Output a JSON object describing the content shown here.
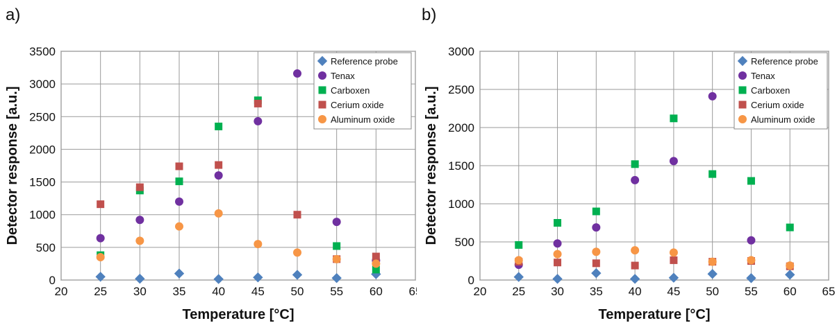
{
  "chart_data": [
    {
      "panel_label": "a)",
      "type": "scatter",
      "xlabel": "Temperature [°C]",
      "ylabel": "Detector response [a.u.]",
      "xlim": [
        20,
        65
      ],
      "ylim": [
        0,
        3500
      ],
      "xticks": [
        20,
        25,
        30,
        35,
        40,
        45,
        50,
        55,
        60,
        65
      ],
      "yticks": [
        0,
        500,
        1000,
        1500,
        2000,
        2500,
        3000,
        3500
      ],
      "grid": true,
      "legend": "top-right",
      "x": [
        25,
        30,
        35,
        40,
        45,
        50,
        55,
        60
      ],
      "series": [
        {
          "name": "Reference probe",
          "marker": "diamond",
          "color": "#4F81BD",
          "values": [
            50,
            20,
            100,
            15,
            40,
            80,
            30,
            90
          ]
        },
        {
          "name": "Tenax",
          "marker": "circle",
          "color": "#7030A0",
          "values": [
            640,
            920,
            1200,
            1600,
            2430,
            3160,
            890,
            300
          ]
        },
        {
          "name": "Carboxen",
          "marker": "square",
          "color": "#00B050",
          "values": [
            380,
            1370,
            1510,
            2350,
            2750,
            null,
            520,
            160
          ]
        },
        {
          "name": "Cerium oxide",
          "marker": "square",
          "color": "#C0504D",
          "values": [
            1160,
            1420,
            1740,
            1760,
            2700,
            1000,
            320,
            360
          ]
        },
        {
          "name": "Aluminum oxide",
          "marker": "circle",
          "color": "#F79646",
          "values": [
            350,
            600,
            820,
            1020,
            550,
            420,
            320,
            250
          ]
        }
      ]
    },
    {
      "panel_label": "b)",
      "type": "scatter",
      "xlabel": "Temperature [°C]",
      "ylabel": "Detector response [a.u.]",
      "xlim": [
        20,
        65
      ],
      "ylim": [
        0,
        3000
      ],
      "xticks": [
        20,
        25,
        30,
        35,
        40,
        45,
        50,
        55,
        60,
        65
      ],
      "yticks": [
        0,
        500,
        1000,
        1500,
        2000,
        2500,
        3000
      ],
      "grid": true,
      "legend": "top-right",
      "x": [
        25,
        30,
        35,
        40,
        45,
        50,
        55,
        60
      ],
      "series": [
        {
          "name": "Reference probe",
          "marker": "diamond",
          "color": "#4F81BD",
          "values": [
            40,
            15,
            90,
            15,
            30,
            80,
            25,
            70
          ]
        },
        {
          "name": "Tenax",
          "marker": "circle",
          "color": "#7030A0",
          "values": [
            200,
            480,
            690,
            1310,
            1560,
            2410,
            520,
            null
          ]
        },
        {
          "name": "Carboxen",
          "marker": "square",
          "color": "#00B050",
          "values": [
            460,
            750,
            900,
            1520,
            2120,
            1390,
            1300,
            690
          ]
        },
        {
          "name": "Cerium oxide",
          "marker": "square",
          "color": "#C0504D",
          "values": [
            240,
            230,
            220,
            190,
            260,
            240,
            250,
            180
          ]
        },
        {
          "name": "Aluminum oxide",
          "marker": "circle",
          "color": "#F79646",
          "values": [
            260,
            340,
            370,
            390,
            360,
            240,
            260,
            190
          ]
        }
      ]
    }
  ]
}
